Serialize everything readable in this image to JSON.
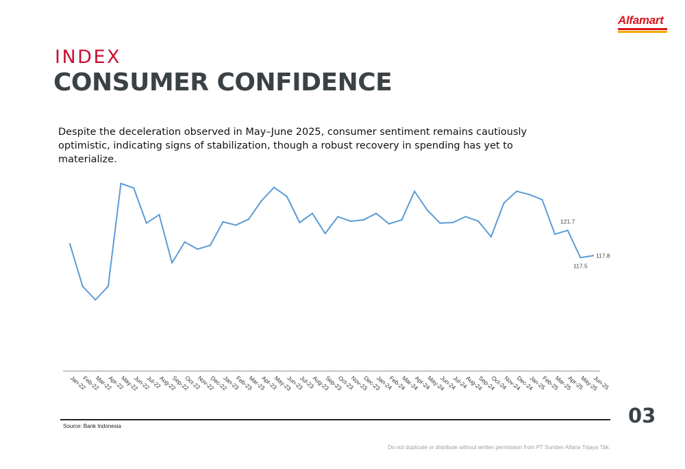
{
  "logo": {
    "text": "Alfamart",
    "colors": [
      "#d7141a",
      "#f5a800"
    ]
  },
  "header": {
    "kicker": "INDEX",
    "title": "CONSUMER CONFIDENCE"
  },
  "description": "Despite the deceleration observed in May–June 2025, consumer sentiment remains cautiously optimistic, indicating signs of stabilization, though a robust recovery in spending has yet to materialize.",
  "chart_data": {
    "type": "line",
    "line_color": "#5b9bd5",
    "title": "",
    "xlabel": "",
    "ylabel": "",
    "ylim": [
      110,
      130
    ],
    "grid": false,
    "categories": [
      "Jan-22",
      "Feb-22",
      "Mar-22",
      "Apr-22",
      "May-22",
      "Jun-22",
      "Jul-22",
      "Aug-22",
      "Sep-22",
      "Oct-22",
      "Nov-22",
      "Dec-22",
      "Jan-23",
      "Feb-23",
      "Mar-23",
      "Apr-23",
      "May-23",
      "Jun-23",
      "Jul-23",
      "Aug-23",
      "Sep-23",
      "Oct-23",
      "Nov-23",
      "Dec-23",
      "Jan-24",
      "Feb-24",
      "Mar-24",
      "Apr-24",
      "May-24",
      "Jun-24",
      "Jul-24",
      "Aug-24",
      "Sep-24",
      "Oct-24",
      "Nov-24",
      "Dec-24",
      "Jan-25",
      "Feb-25",
      "Mar-25",
      "Apr-25",
      "May-25",
      "Jun-25"
    ],
    "series": [
      {
        "values": [
          119.6,
          113.1,
          111.0,
          113.1,
          128.9,
          128.2,
          122.8,
          124.1,
          116.7,
          119.9,
          118.8,
          119.4,
          123.0,
          122.5,
          123.4,
          126.2,
          128.3,
          126.9,
          122.9,
          124.3,
          121.2,
          123.8,
          123.1,
          123.3,
          124.3,
          122.7,
          123.3,
          127.7,
          124.8,
          122.8,
          122.9,
          123.8,
          123.1,
          120.7,
          125.9,
          127.7,
          127.2,
          126.4,
          121.1,
          121.7,
          117.5,
          117.8
        ]
      }
    ],
    "data_labels": [
      {
        "index": 39,
        "text": "121.7",
        "position": "above"
      },
      {
        "index": 40,
        "text": "117.5",
        "position": "below"
      },
      {
        "index": 41,
        "text": "117.8",
        "position": "right"
      }
    ]
  },
  "footer": {
    "source": "Source: Bank Indonesia",
    "page_number": "03",
    "disclaimer": "Do not duplicate or distribute without written permission from PT Sumber Alfaria Trijaya Tbk."
  }
}
